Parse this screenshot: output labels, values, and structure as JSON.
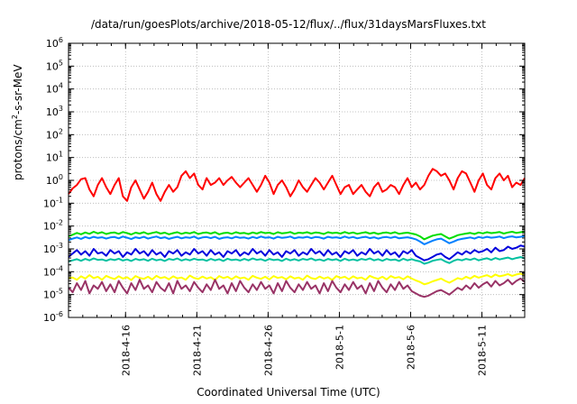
{
  "chart_data": {
    "type": "line",
    "title": "/data/run/goesPlots/archive/2018-05-12/flux/../flux/31daysMarsFluxes.txt",
    "xlabel": "Coordinated Universal Time (UTC)",
    "ylabel": {
      "prefix": "protons/cm",
      "sup": "2",
      "suffix": "-s-sr-MeV"
    },
    "yscale": "log",
    "ylim": [
      -6,
      6
    ],
    "ytick_exponents": [
      -6,
      -5,
      -4,
      -3,
      -2,
      -1,
      0,
      1,
      2,
      3,
      4,
      5,
      6
    ],
    "ytick_base": "10",
    "xlim": [
      "2018-04-12",
      "2018-05-14"
    ],
    "xticks": [
      "2018-4-16",
      "2018-4-21",
      "2018-4-26",
      "2018-5-1",
      "2018-5-6",
      "2018-5-11"
    ],
    "grid": true,
    "legend": "none",
    "series": [
      {
        "color": "#ff0000",
        "values": [
          -0.6,
          -0.35,
          -0.2,
          0.05,
          0.1,
          -0.4,
          -0.7,
          -0.2,
          0.1,
          -0.3,
          -0.6,
          -0.2,
          0.1,
          -0.7,
          -0.9,
          -0.3,
          0.0,
          -0.4,
          -0.8,
          -0.5,
          -0.1,
          -0.6,
          -0.9,
          -0.5,
          -0.2,
          -0.5,
          -0.3,
          0.2,
          0.4,
          0.1,
          0.3,
          -0.2,
          -0.4,
          0.1,
          -0.2,
          -0.1,
          0.1,
          -0.2,
          0.0,
          0.15,
          -0.1,
          -0.3,
          -0.1,
          0.1,
          -0.2,
          -0.5,
          -0.2,
          0.2,
          -0.1,
          -0.6,
          -0.2,
          0.0,
          -0.3,
          -0.7,
          -0.4,
          0.0,
          -0.3,
          -0.5,
          -0.2,
          0.1,
          -0.1,
          -0.4,
          -0.1,
          0.2,
          -0.2,
          -0.6,
          -0.3,
          -0.2,
          -0.6,
          -0.4,
          -0.2,
          -0.5,
          -0.7,
          -0.3,
          -0.1,
          -0.5,
          -0.4,
          -0.2,
          -0.3,
          -0.6,
          -0.2,
          0.1,
          -0.3,
          -0.1,
          -0.4,
          -0.2,
          0.2,
          0.5,
          0.4,
          0.2,
          0.3,
          0.0,
          -0.4,
          0.1,
          0.4,
          0.3,
          -0.1,
          -0.5,
          0.0,
          0.3,
          -0.2,
          -0.4,
          0.1,
          0.3,
          0.0,
          0.2,
          -0.3,
          -0.1,
          -0.2,
          0.1
        ]
      },
      {
        "color": "#00dd00",
        "values": [
          -2.45,
          -2.38,
          -2.3,
          -2.36,
          -2.28,
          -2.34,
          -2.25,
          -2.32,
          -2.27,
          -2.35,
          -2.3,
          -2.28,
          -2.34,
          -2.26,
          -2.31,
          -2.37,
          -2.29,
          -2.33,
          -2.27,
          -2.35,
          -2.3,
          -2.26,
          -2.33,
          -2.29,
          -2.36,
          -2.31,
          -2.27,
          -2.34,
          -2.29,
          -2.32,
          -2.26,
          -2.35,
          -2.3,
          -2.28,
          -2.33,
          -2.27,
          -2.36,
          -2.31,
          -2.29,
          -2.34,
          -2.27,
          -2.32,
          -2.3,
          -2.35,
          -2.28,
          -2.33,
          -2.26,
          -2.31,
          -2.29,
          -2.35,
          -2.27,
          -2.32,
          -2.3,
          -2.26,
          -2.34,
          -2.29,
          -2.31,
          -2.27,
          -2.33,
          -2.28,
          -2.3,
          -2.35,
          -2.27,
          -2.31,
          -2.29,
          -2.33,
          -2.26,
          -2.32,
          -2.28,
          -2.34,
          -2.3,
          -2.27,
          -2.33,
          -2.29,
          -2.35,
          -2.3,
          -2.28,
          -2.32,
          -2.27,
          -2.34,
          -2.31,
          -2.29,
          -2.33,
          -2.37,
          -2.45,
          -2.58,
          -2.5,
          -2.42,
          -2.38,
          -2.35,
          -2.45,
          -2.55,
          -2.48,
          -2.4,
          -2.36,
          -2.33,
          -2.3,
          -2.35,
          -2.28,
          -2.32,
          -2.27,
          -2.31,
          -2.29,
          -2.26,
          -2.33,
          -2.28,
          -2.25,
          -2.3,
          -2.27,
          -2.24
        ]
      },
      {
        "color": "#0080ff",
        "values": [
          -2.62,
          -2.55,
          -2.5,
          -2.56,
          -2.48,
          -2.54,
          -2.47,
          -2.52,
          -2.49,
          -2.55,
          -2.5,
          -2.48,
          -2.54,
          -2.46,
          -2.51,
          -2.57,
          -2.49,
          -2.53,
          -2.47,
          -2.55,
          -2.5,
          -2.46,
          -2.53,
          -2.49,
          -2.56,
          -2.51,
          -2.47,
          -2.54,
          -2.49,
          -2.52,
          -2.46,
          -2.55,
          -2.5,
          -2.48,
          -2.53,
          -2.47,
          -2.56,
          -2.51,
          -2.49,
          -2.54,
          -2.47,
          -2.52,
          -2.5,
          -2.55,
          -2.48,
          -2.53,
          -2.46,
          -2.51,
          -2.49,
          -2.55,
          -2.47,
          -2.52,
          -2.5,
          -2.46,
          -2.54,
          -2.49,
          -2.51,
          -2.47,
          -2.53,
          -2.48,
          -2.5,
          -2.55,
          -2.47,
          -2.51,
          -2.49,
          -2.53,
          -2.46,
          -2.52,
          -2.48,
          -2.54,
          -2.5,
          -2.47,
          -2.53,
          -2.49,
          -2.55,
          -2.5,
          -2.48,
          -2.52,
          -2.47,
          -2.54,
          -2.51,
          -2.49,
          -2.53,
          -2.58,
          -2.68,
          -2.8,
          -2.72,
          -2.64,
          -2.58,
          -2.55,
          -2.65,
          -2.75,
          -2.68,
          -2.6,
          -2.56,
          -2.53,
          -2.5,
          -2.55,
          -2.48,
          -2.52,
          -2.47,
          -2.51,
          -2.49,
          -2.46,
          -2.53,
          -2.48,
          -2.45,
          -2.5,
          -2.47,
          -2.44
        ]
      },
      {
        "color": "#0000dd",
        "values": [
          -3.35,
          -3.2,
          -3.05,
          -3.25,
          -3.1,
          -3.3,
          -3.0,
          -3.2,
          -3.15,
          -3.3,
          -3.05,
          -3.2,
          -3.1,
          -3.35,
          -3.15,
          -3.25,
          -3.0,
          -3.2,
          -3.1,
          -3.3,
          -3.05,
          -3.25,
          -3.15,
          -3.35,
          -3.1,
          -3.2,
          -3.05,
          -3.3,
          -3.15,
          -3.25,
          -3.0,
          -3.2,
          -3.1,
          -3.3,
          -3.05,
          -3.25,
          -3.15,
          -3.35,
          -3.1,
          -3.2,
          -3.05,
          -3.3,
          -3.15,
          -3.25,
          -3.0,
          -3.2,
          -3.1,
          -3.3,
          -3.05,
          -3.25,
          -3.15,
          -3.35,
          -3.1,
          -3.2,
          -3.05,
          -3.3,
          -3.15,
          -3.25,
          -3.0,
          -3.2,
          -3.1,
          -3.3,
          -3.05,
          -3.25,
          -3.15,
          -3.35,
          -3.1,
          -3.2,
          -3.05,
          -3.3,
          -3.15,
          -3.25,
          -3.0,
          -3.2,
          -3.1,
          -3.3,
          -3.05,
          -3.25,
          -3.15,
          -3.35,
          -3.1,
          -3.2,
          -3.05,
          -3.3,
          -3.4,
          -3.5,
          -3.45,
          -3.35,
          -3.25,
          -3.2,
          -3.35,
          -3.45,
          -3.3,
          -3.15,
          -3.25,
          -3.1,
          -3.2,
          -3.05,
          -3.15,
          -3.1,
          -3.0,
          -3.15,
          -2.95,
          -3.1,
          -3.05,
          -2.9,
          -3.0,
          -2.95,
          -2.85,
          -2.9
        ]
      },
      {
        "color": "#00c0a0",
        "values": [
          -3.55,
          -3.5,
          -3.45,
          -3.52,
          -3.44,
          -3.5,
          -3.42,
          -3.48,
          -3.46,
          -3.52,
          -3.45,
          -3.49,
          -3.43,
          -3.51,
          -3.46,
          -3.53,
          -3.44,
          -3.49,
          -3.45,
          -3.52,
          -3.43,
          -3.5,
          -3.46,
          -3.53,
          -3.44,
          -3.48,
          -3.42,
          -3.51,
          -3.45,
          -3.5,
          -3.43,
          -3.48,
          -3.46,
          -3.52,
          -3.44,
          -3.5,
          -3.45,
          -3.53,
          -3.43,
          -3.49,
          -3.46,
          -3.51,
          -3.44,
          -3.5,
          -3.42,
          -3.48,
          -3.45,
          -3.52,
          -3.44,
          -3.49,
          -3.46,
          -3.53,
          -3.43,
          -3.5,
          -3.45,
          -3.51,
          -3.44,
          -3.48,
          -3.42,
          -3.5,
          -3.46,
          -3.52,
          -3.44,
          -3.49,
          -3.45,
          -3.53,
          -3.43,
          -3.5,
          -3.46,
          -3.51,
          -3.44,
          -3.48,
          -3.42,
          -3.5,
          -3.45,
          -3.52,
          -3.44,
          -3.49,
          -3.46,
          -3.53,
          -3.43,
          -3.5,
          -3.45,
          -3.51,
          -3.55,
          -3.65,
          -3.6,
          -3.52,
          -3.48,
          -3.45,
          -3.55,
          -3.62,
          -3.52,
          -3.46,
          -3.5,
          -3.44,
          -3.48,
          -3.42,
          -3.5,
          -3.45,
          -3.41,
          -3.48,
          -3.4,
          -3.46,
          -3.42,
          -3.38,
          -3.45,
          -3.4,
          -3.36,
          -3.42
        ]
      },
      {
        "color": "#ffff00",
        "values": [
          -4.3,
          -4.25,
          -4.35,
          -4.2,
          -4.3,
          -4.15,
          -4.28,
          -4.22,
          -4.35,
          -4.18,
          -4.26,
          -4.32,
          -4.2,
          -4.3,
          -4.24,
          -4.36,
          -4.19,
          -4.27,
          -4.31,
          -4.22,
          -4.34,
          -4.18,
          -4.28,
          -4.23,
          -4.33,
          -4.2,
          -4.29,
          -4.25,
          -4.35,
          -4.17,
          -4.27,
          -4.32,
          -4.21,
          -4.3,
          -4.24,
          -4.36,
          -4.19,
          -4.28,
          -4.22,
          -4.33,
          -4.2,
          -4.29,
          -4.25,
          -4.35,
          -4.18,
          -4.26,
          -4.31,
          -4.22,
          -4.34,
          -4.19,
          -4.27,
          -4.23,
          -4.33,
          -4.2,
          -4.3,
          -4.25,
          -4.35,
          -4.17,
          -4.28,
          -4.32,
          -4.21,
          -4.3,
          -4.24,
          -4.36,
          -4.19,
          -4.27,
          -4.22,
          -4.33,
          -4.2,
          -4.29,
          -4.25,
          -4.35,
          -4.18,
          -4.26,
          -4.31,
          -4.22,
          -4.34,
          -4.19,
          -4.27,
          -4.23,
          -4.33,
          -4.2,
          -4.3,
          -4.38,
          -4.45,
          -4.55,
          -4.5,
          -4.42,
          -4.36,
          -4.3,
          -4.4,
          -4.48,
          -4.38,
          -4.28,
          -4.33,
          -4.22,
          -4.3,
          -4.18,
          -4.26,
          -4.2,
          -4.15,
          -4.24,
          -4.12,
          -4.2,
          -4.16,
          -4.1,
          -4.18,
          -4.12,
          -4.08,
          -4.14
        ]
      },
      {
        "color": "#993366",
        "values": [
          -4.7,
          -4.9,
          -4.5,
          -4.8,
          -4.4,
          -4.95,
          -4.6,
          -4.75,
          -4.45,
          -4.85,
          -4.55,
          -4.9,
          -4.4,
          -4.7,
          -4.95,
          -4.5,
          -4.8,
          -4.35,
          -4.75,
          -4.6,
          -4.9,
          -4.45,
          -4.7,
          -4.85,
          -4.5,
          -4.95,
          -4.4,
          -4.75,
          -4.6,
          -4.85,
          -4.45,
          -4.7,
          -4.9,
          -4.55,
          -4.8,
          -4.35,
          -4.75,
          -4.6,
          -4.95,
          -4.5,
          -4.85,
          -4.4,
          -4.7,
          -4.9,
          -4.55,
          -4.8,
          -4.45,
          -4.75,
          -4.6,
          -4.95,
          -4.5,
          -4.85,
          -4.4,
          -4.7,
          -4.9,
          -4.55,
          -4.8,
          -4.45,
          -4.75,
          -4.6,
          -4.95,
          -4.5,
          -4.85,
          -4.4,
          -4.7,
          -4.9,
          -4.55,
          -4.8,
          -4.45,
          -4.75,
          -4.6,
          -4.95,
          -4.5,
          -4.85,
          -4.4,
          -4.7,
          -4.9,
          -4.55,
          -4.8,
          -4.45,
          -4.75,
          -4.6,
          -4.85,
          -4.95,
          -5.05,
          -5.1,
          -5.05,
          -4.95,
          -4.85,
          -4.8,
          -4.9,
          -5.0,
          -4.85,
          -4.7,
          -4.8,
          -4.6,
          -4.75,
          -4.5,
          -4.7,
          -4.55,
          -4.45,
          -4.65,
          -4.4,
          -4.6,
          -4.5,
          -4.35,
          -4.55,
          -4.4,
          -4.3,
          -4.45
        ]
      }
    ]
  }
}
